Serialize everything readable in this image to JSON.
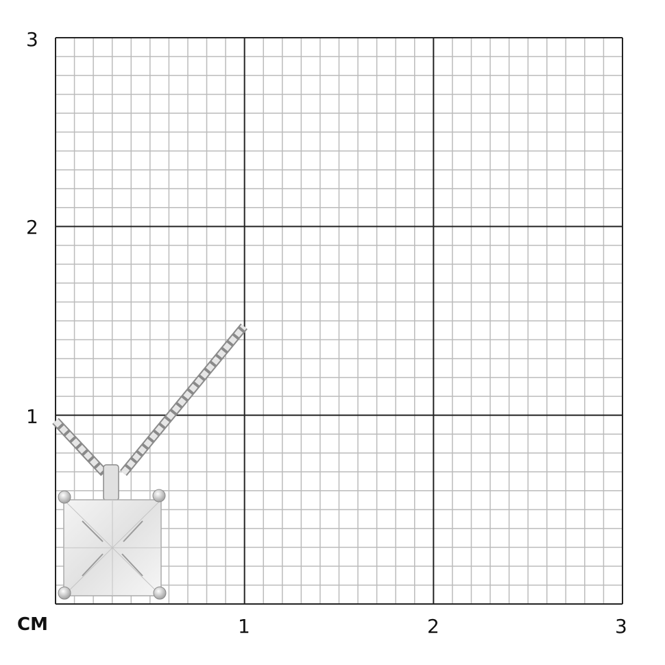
{
  "unit_label": "CM",
  "x_ticks": [
    "1",
    "2",
    "3"
  ],
  "y_ticks": [
    "1",
    "2",
    "3"
  ],
  "grid": {
    "major_per_unit": 1,
    "minor_per_unit": 10,
    "range_cm": 3
  },
  "colors": {
    "major_line": "#222222",
    "minor_line": "#bbbbbb",
    "metal": "#d8d8d8",
    "metal_edge": "#8a8a8a"
  },
  "product": "princess-cut-pendant"
}
